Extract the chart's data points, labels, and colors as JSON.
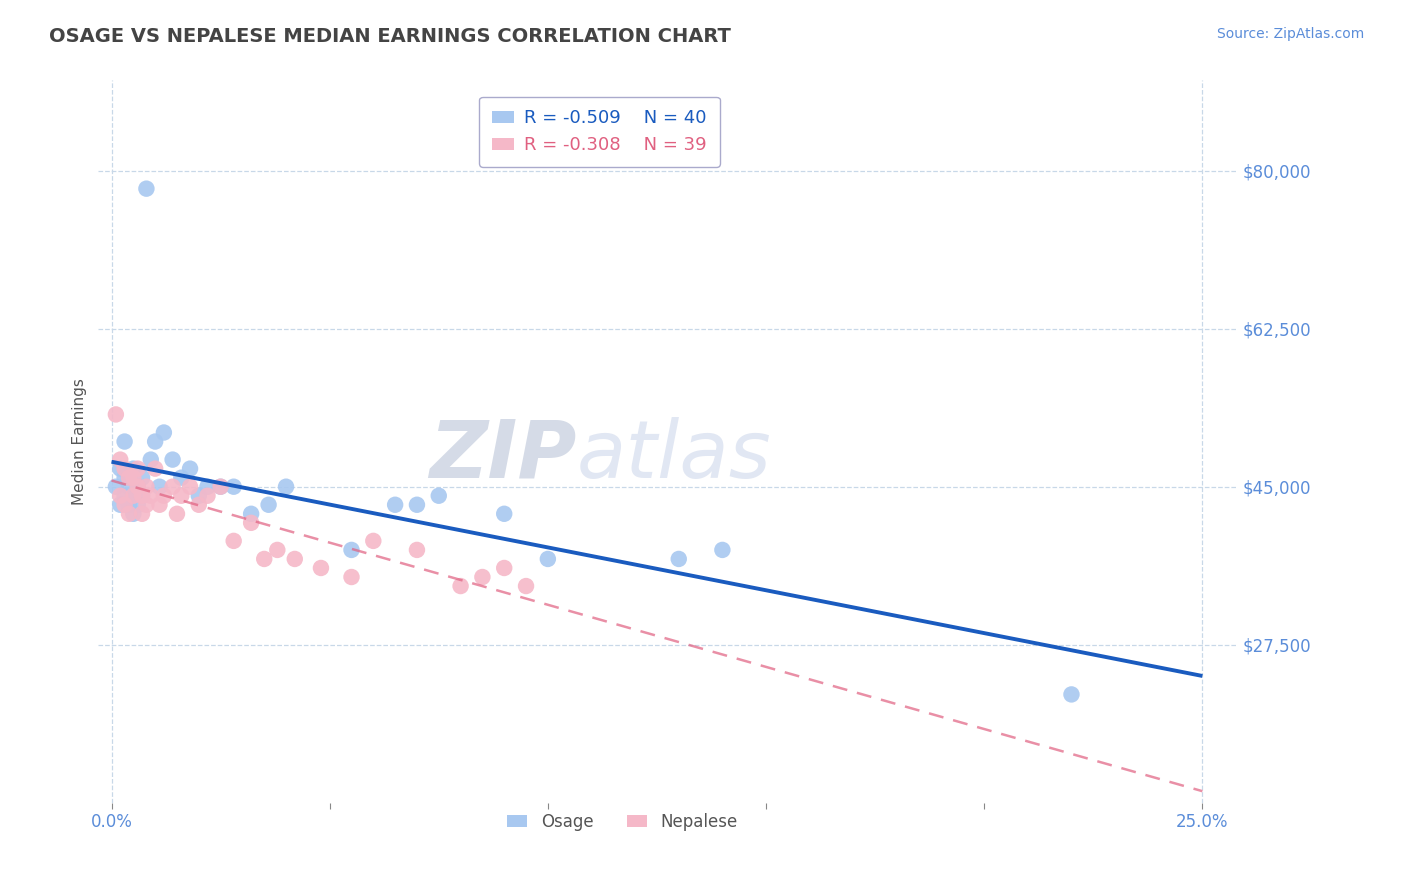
{
  "title": "OSAGE VS NEPALESE MEDIAN EARNINGS CORRELATION CHART",
  "source_text": "Source: ZipAtlas.com",
  "ylabel": "Median Earnings",
  "xlim": [
    -0.003,
    0.258
  ],
  "ylim": [
    10000,
    90000
  ],
  "yticks": [
    27500,
    45000,
    62500,
    80000
  ],
  "ytick_labels": [
    "$27,500",
    "$45,000",
    "$62,500",
    "$80,000"
  ],
  "xticks": [
    0.0,
    0.05,
    0.1,
    0.15,
    0.2,
    0.25
  ],
  "xtick_labels": [
    "0.0%",
    "",
    "",
    "",
    "",
    "25.0%"
  ],
  "background_color": "#ffffff",
  "grid_color": "#c8d8e8",
  "title_color": "#444444",
  "tick_label_color": "#5b8dd9",
  "watermark_zip": "ZIP",
  "watermark_atlas": "atlas",
  "legend_r1": "R = -0.509",
  "legend_n1": "N = 40",
  "legend_r2": "R = -0.308",
  "legend_n2": "N = 39",
  "osage_color": "#a8c8f0",
  "nepalese_color": "#f5b8c8",
  "osage_line_color": "#1a5bbf",
  "nepalese_line_color": "#e06080",
  "osage_x": [
    0.001,
    0.002,
    0.002,
    0.003,
    0.003,
    0.003,
    0.004,
    0.004,
    0.004,
    0.005,
    0.005,
    0.005,
    0.006,
    0.006,
    0.007,
    0.007,
    0.008,
    0.009,
    0.01,
    0.011,
    0.012,
    0.014,
    0.016,
    0.018,
    0.02,
    0.022,
    0.025,
    0.028,
    0.032,
    0.036,
    0.04,
    0.055,
    0.065,
    0.07,
    0.075,
    0.09,
    0.1,
    0.13,
    0.14,
    0.22
  ],
  "osage_y": [
    45000,
    47000,
    43000,
    46000,
    44000,
    50000,
    45000,
    43000,
    46000,
    47000,
    44000,
    42000,
    45000,
    43000,
    46000,
    44000,
    78000,
    48000,
    50000,
    45000,
    51000,
    48000,
    46000,
    47000,
    44000,
    45000,
    45000,
    45000,
    42000,
    43000,
    45000,
    38000,
    43000,
    43000,
    44000,
    42000,
    37000,
    37000,
    38000,
    22000
  ],
  "nepalese_x": [
    0.001,
    0.002,
    0.002,
    0.003,
    0.003,
    0.004,
    0.004,
    0.005,
    0.005,
    0.006,
    0.006,
    0.007,
    0.007,
    0.008,
    0.008,
    0.009,
    0.01,
    0.011,
    0.012,
    0.014,
    0.015,
    0.016,
    0.018,
    0.02,
    0.022,
    0.025,
    0.028,
    0.032,
    0.035,
    0.038,
    0.042,
    0.048,
    0.055,
    0.06,
    0.07,
    0.08,
    0.085,
    0.09,
    0.095
  ],
  "nepalese_y": [
    53000,
    48000,
    44000,
    47000,
    43000,
    46000,
    42000,
    46000,
    44000,
    45000,
    47000,
    44000,
    42000,
    45000,
    43000,
    44000,
    47000,
    43000,
    44000,
    45000,
    42000,
    44000,
    45000,
    43000,
    44000,
    45000,
    39000,
    41000,
    37000,
    38000,
    37000,
    36000,
    35000,
    39000,
    38000,
    34000,
    35000,
    36000,
    34000
  ]
}
